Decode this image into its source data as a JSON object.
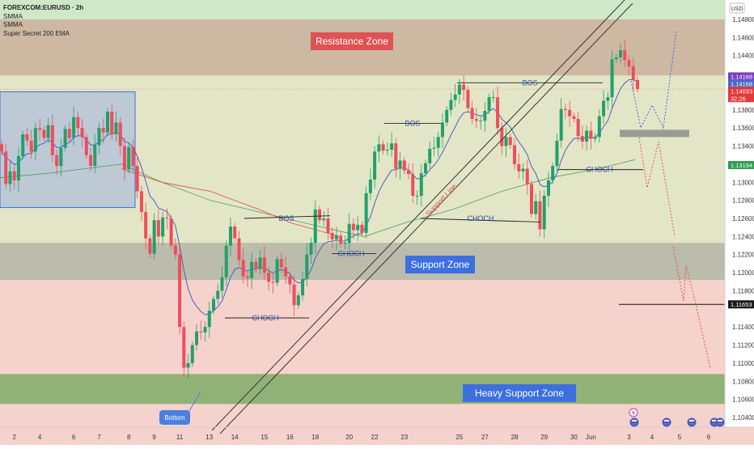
{
  "chart_data": {
    "type": "candlestick",
    "symbol": "FOREXCOM:EURUSD · 2h",
    "indicators": [
      "SMMA",
      "SMMA",
      "Super Secret 200 EMA"
    ],
    "currency": "USD",
    "ylim": [
      1.104,
      1.149
    ],
    "y_ticks": [
      {
        "v": 1.148,
        "t": "1.14800"
      },
      {
        "v": 1.146,
        "t": "1.14600"
      },
      {
        "v": 1.144,
        "t": "1.14400"
      },
      {
        "v": 1.138,
        "t": "1.13800"
      },
      {
        "v": 1.136,
        "t": "1.13600"
      },
      {
        "v": 1.134,
        "t": "1.13400"
      },
      {
        "v": 1.13,
        "t": "1.13000"
      },
      {
        "v": 1.128,
        "t": "1.12800"
      },
      {
        "v": 1.126,
        "t": "1.12600"
      },
      {
        "v": 1.124,
        "t": "1.12400"
      },
      {
        "v": 1.122,
        "t": "1.12200"
      },
      {
        "v": 1.12,
        "t": "1.12000"
      },
      {
        "v": 1.118,
        "t": "1.11800"
      },
      {
        "v": 1.114,
        "t": "1.11400"
      },
      {
        "v": 1.112,
        "t": "1.11200"
      },
      {
        "v": 1.11,
        "t": "1.11000"
      },
      {
        "v": 1.108,
        "t": "1.10800"
      },
      {
        "v": 1.106,
        "t": "1.10600"
      },
      {
        "v": 1.104,
        "t": "1.10400"
      }
    ],
    "price_badges": [
      {
        "v": 1.1417,
        "t": "1.14168",
        "color": "#7b3fbf"
      },
      {
        "v": 1.1409,
        "t": "1.14168",
        "color": "#4a68c9"
      },
      {
        "v": 1.1401,
        "t": "1.14033",
        "color": "#e03a3a"
      },
      {
        "v": 1.1393,
        "t": "32:26",
        "color": "#e03a3a"
      },
      {
        "v": 1.1319,
        "t": "1.13194",
        "color": "#2f9e4f"
      },
      {
        "v": 1.1165,
        "t": "1.11653",
        "color": "#1a1a1a"
      }
    ],
    "x_ticks": [
      {
        "t": "2",
        "i": 3
      },
      {
        "t": "4",
        "i": 9
      },
      {
        "t": "6",
        "i": 17
      },
      {
        "t": "7",
        "i": 23
      },
      {
        "t": "8",
        "i": 30
      },
      {
        "t": "9",
        "i": 36
      },
      {
        "t": "11",
        "i": 42
      },
      {
        "t": "13",
        "i": 49
      },
      {
        "t": "14",
        "i": 55
      },
      {
        "t": "15",
        "i": 62
      },
      {
        "t": "16",
        "i": 68
      },
      {
        "t": "18",
        "i": 74
      },
      {
        "t": "20",
        "i": 82
      },
      {
        "t": "22",
        "i": 88
      },
      {
        "t": "23",
        "i": 95
      },
      {
        "t": "25",
        "i": 108
      },
      {
        "t": "27",
        "i": 114
      },
      {
        "t": "28",
        "i": 121
      },
      {
        "t": "29",
        "i": 128
      },
      {
        "t": "30",
        "i": 135
      },
      {
        "t": "Jun",
        "i": 139
      },
      {
        "t": "3",
        "i": 148
      }
    ],
    "x_ticks_future": [
      {
        "t": "4",
        "v": 806
      },
      {
        "t": "5",
        "v": 840
      },
      {
        "t": "6",
        "v": 876
      }
    ],
    "zones": [
      {
        "label": "Resistance Zone",
        "top": 1.148,
        "bottom": 1.1418,
        "fill": "#c97f73",
        "opacity": 0.45,
        "label_bg": "#e05252"
      },
      {
        "label": "Support Zone",
        "top": 1.1233,
        "bottom": 1.1192,
        "fill": "#8a8a8a",
        "opacity": 0.45,
        "label_bg": "#3d6fe0"
      },
      {
        "label": "Heavy Support Zone",
        "top": 1.1088,
        "bottom": 1.1055,
        "fill": "#4f9c3e",
        "opacity": 0.6,
        "label_bg": "#3d6fe0"
      }
    ],
    "annotations": [
      "BOS",
      "BOS",
      "BOS",
      "CHOCH",
      "CHOCH",
      "CHOCH",
      "CHOCH",
      "Support Line",
      "Bottom"
    ],
    "ohlc_closes": [
      1.1334,
      1.1298,
      1.1312,
      1.1302,
      1.1329,
      1.1353,
      1.1346,
      1.1334,
      1.136,
      1.1358,
      1.1349,
      1.1363,
      1.133,
      1.1318,
      1.1338,
      1.1359,
      1.1349,
      1.1372,
      1.136,
      1.135,
      1.133,
      1.1318,
      1.1341,
      1.136,
      1.1355,
      1.1378,
      1.1353,
      1.1366,
      1.134,
      1.1314,
      1.1339,
      1.1318,
      1.129,
      1.1267,
      1.1238,
      1.1221,
      1.1258,
      1.124,
      1.1261,
      1.126,
      1.123,
      1.122,
      1.114,
      1.1095,
      1.11,
      1.112,
      1.1135,
      1.1134,
      1.114,
      1.1158,
      1.1171,
      1.118,
      1.1195,
      1.123,
      1.1251,
      1.1238,
      1.1214,
      1.1196,
      1.1194,
      1.1212,
      1.1204,
      1.1217,
      1.12,
      1.119,
      1.1189,
      1.1215,
      1.1206,
      1.1196,
      1.1187,
      1.1164,
      1.1175,
      1.1193,
      1.122,
      1.1233,
      1.127,
      1.1258,
      1.126,
      1.1244,
      1.1237,
      1.1241,
      1.1232,
      1.1233,
      1.1254,
      1.1247,
      1.1253,
      1.1244,
      1.1288,
      1.1303,
      1.1334,
      1.1342,
      1.1335,
      1.1336,
      1.1343,
      1.1315,
      1.1324,
      1.1313,
      1.1309,
      1.1285,
      1.1285,
      1.131,
      1.1321,
      1.1337,
      1.1338,
      1.135,
      1.1366,
      1.138,
      1.1391,
      1.1397,
      1.1408,
      1.1402,
      1.1382,
      1.137,
      1.1368,
      1.1368,
      1.1379,
      1.1394,
      1.1394,
      1.136,
      1.134,
      1.135,
      1.1341,
      1.132,
      1.1312,
      1.1315,
      1.1298,
      1.1265,
      1.1279,
      1.1248,
      1.1285,
      1.1302,
      1.1318,
      1.1346,
      1.1381,
      1.138,
      1.1373,
      1.137,
      1.1351,
      1.1345,
      1.1357,
      1.1348,
      1.135,
      1.1373,
      1.139,
      1.1394,
      1.1436,
      1.1438,
      1.1446,
      1.1435,
      1.1428,
      1.1413,
      1.1403
    ]
  }
}
